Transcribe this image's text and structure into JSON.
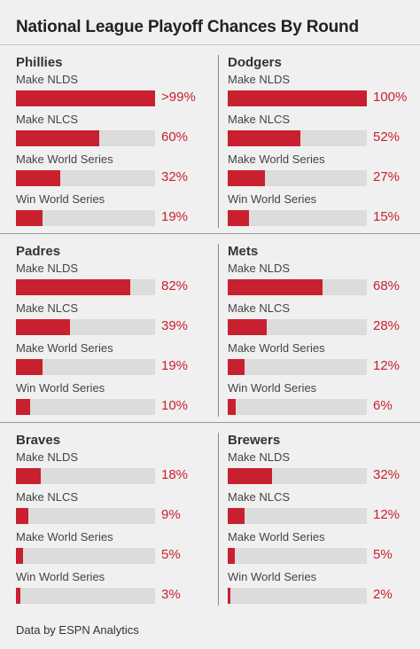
{
  "header": {
    "title": "National League Playoff Chances By Round"
  },
  "footer": {
    "source": "Data by ESPN Analytics"
  },
  "colors": {
    "bar": "#c8202f",
    "track": "#dcdcdc",
    "background": "#f0f0f0"
  },
  "chart_data": {
    "type": "bar",
    "orientation": "horizontal",
    "title": "National League Playoff Chances By Round",
    "xlim": [
      0,
      100
    ],
    "categories": [
      "Make NLDS",
      "Make NLCS",
      "Make World Series",
      "Win World Series"
    ],
    "teams": [
      {
        "name": "Phillies",
        "values": [
          100,
          60,
          32,
          19
        ],
        "labels": [
          ">99%",
          "60%",
          "32%",
          "19%"
        ]
      },
      {
        "name": "Dodgers",
        "values": [
          100,
          52,
          27,
          15
        ],
        "labels": [
          "100%",
          "52%",
          "27%",
          "15%"
        ]
      },
      {
        "name": "Padres",
        "values": [
          82,
          39,
          19,
          10
        ],
        "labels": [
          "82%",
          "39%",
          "19%",
          "10%"
        ]
      },
      {
        "name": "Mets",
        "values": [
          68,
          28,
          12,
          6
        ],
        "labels": [
          "68%",
          "28%",
          "12%",
          "6%"
        ]
      },
      {
        "name": "Braves",
        "values": [
          18,
          9,
          5,
          3
        ],
        "labels": [
          "18%",
          "9%",
          "5%",
          "3%"
        ]
      },
      {
        "name": "Brewers",
        "values": [
          32,
          12,
          5,
          2
        ],
        "labels": [
          "32%",
          "12%",
          "5%",
          "2%"
        ]
      }
    ]
  }
}
